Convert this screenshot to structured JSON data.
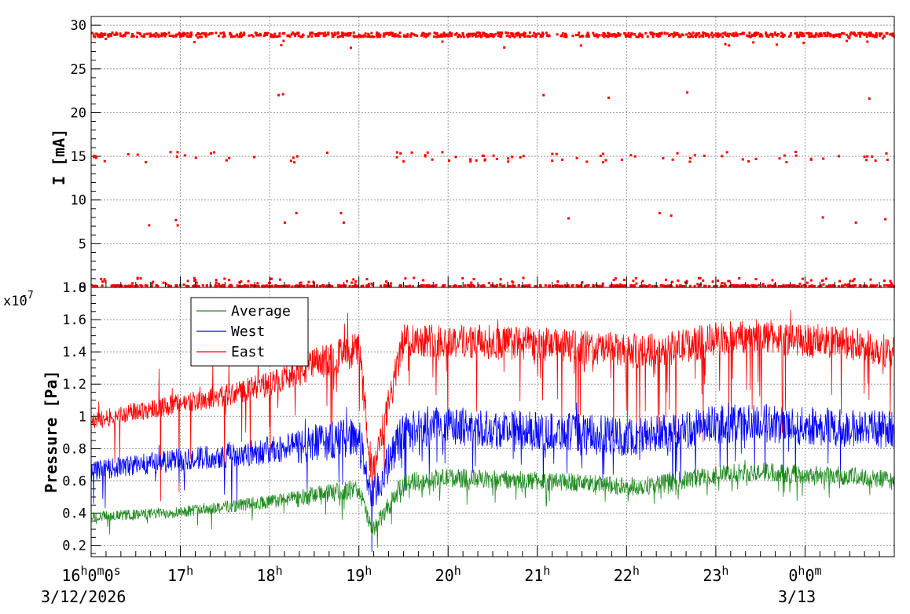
{
  "chart_data": [
    {
      "type": "scatter",
      "ylabel": "I [mA]",
      "ylim": [
        0,
        31
      ],
      "yticks": [
        "0",
        "5",
        "10",
        "15",
        "20",
        "25",
        "30"
      ],
      "grid": true,
      "color": "#ff0000",
      "series": [
        {
          "values_description_free": true,
          "bands": [
            {
              "level": 28.9,
              "note": ""
            },
            {
              "level": 14.9,
              "note": ""
            },
            {
              "level": 0.7,
              "note": ""
            },
            {
              "level": 0.1,
              "note": ""
            }
          ],
          "outliers": [
            {
              "x": 18.1,
              "y": 22.0
            },
            {
              "x": 18.15,
              "y": 22.1
            },
            {
              "x": 21.07,
              "y": 22.0
            },
            {
              "x": 21.8,
              "y": 21.7
            },
            {
              "x": 22.68,
              "y": 22.3
            },
            {
              "x": 24.72,
              "y": 21.6
            },
            {
              "x": 16.65,
              "y": 7.1
            },
            {
              "x": 16.95,
              "y": 7.7
            },
            {
              "x": 16.97,
              "y": 7.1
            },
            {
              "x": 18.17,
              "y": 7.4
            },
            {
              "x": 18.3,
              "y": 8.5
            },
            {
              "x": 18.8,
              "y": 8.5
            },
            {
              "x": 18.83,
              "y": 7.4
            },
            {
              "x": 21.35,
              "y": 7.9
            },
            {
              "x": 22.37,
              "y": 8.5
            },
            {
              "x": 22.5,
              "y": 8.2
            },
            {
              "x": 24.2,
              "y": 8.0
            },
            {
              "x": 24.57,
              "y": 7.4
            },
            {
              "x": 24.9,
              "y": 7.8
            }
          ]
        }
      ]
    },
    {
      "type": "line",
      "ylabel": "Pressure [Pa]",
      "yscale_label": "x10",
      "yscale_exp": "-7",
      "ylim": [
        0.13,
        1.8
      ],
      "yticks": [
        "0.2",
        "0.4",
        "0.6",
        "0.8",
        "1",
        "1.2",
        "1.4",
        "1.6",
        "1.8"
      ],
      "grid": true,
      "legend": "top-left",
      "series": [
        {
          "name": "Average",
          "color": "#228b22",
          "x": [
            16.0,
            16.5,
            17.0,
            17.5,
            18.0,
            18.5,
            19.0,
            19.15,
            19.5,
            20.0,
            20.5,
            21.0,
            21.5,
            22.0,
            22.5,
            23.0,
            23.5,
            24.0,
            24.5,
            25.0
          ],
          "values": [
            0.38,
            0.39,
            0.41,
            0.44,
            0.47,
            0.51,
            0.55,
            0.28,
            0.59,
            0.62,
            0.61,
            0.6,
            0.59,
            0.56,
            0.59,
            0.64,
            0.66,
            0.64,
            0.63,
            0.6
          ]
        },
        {
          "name": "West",
          "color": "#0000ff",
          "x": [
            16.0,
            16.5,
            17.0,
            17.5,
            18.0,
            18.5,
            19.0,
            19.15,
            19.5,
            20.0,
            20.5,
            21.0,
            21.5,
            22.0,
            22.5,
            23.0,
            23.5,
            24.0,
            24.5,
            25.0
          ],
          "values": [
            0.66,
            0.7,
            0.73,
            0.76,
            0.79,
            0.83,
            0.88,
            0.48,
            0.92,
            0.94,
            0.93,
            0.91,
            0.9,
            0.87,
            0.9,
            0.95,
            0.96,
            0.94,
            0.93,
            0.92
          ]
        },
        {
          "name": "East",
          "color": "#ff0000",
          "x": [
            16.0,
            16.5,
            17.0,
            17.5,
            18.0,
            18.5,
            19.0,
            19.15,
            19.5,
            20.0,
            20.5,
            21.0,
            21.5,
            22.0,
            22.5,
            23.0,
            23.5,
            24.0,
            24.5,
            25.0
          ],
          "values": [
            0.97,
            1.03,
            1.08,
            1.13,
            1.2,
            1.32,
            1.42,
            0.62,
            1.48,
            1.47,
            1.46,
            1.45,
            1.43,
            1.4,
            1.42,
            1.48,
            1.5,
            1.47,
            1.45,
            1.4
          ]
        }
      ]
    }
  ],
  "x_axis": {
    "ticks": [
      {
        "hour": 16,
        "label": "16",
        "sup": "h",
        "tail": "0",
        "tail_sup": "m",
        "tail2": "0",
        "tail2_sup": "s"
      },
      {
        "hour": 17,
        "label": "17",
        "sup": "h"
      },
      {
        "hour": 18,
        "label": "18",
        "sup": "h"
      },
      {
        "hour": 19,
        "label": "19",
        "sup": "h"
      },
      {
        "hour": 20,
        "label": "20",
        "sup": "h"
      },
      {
        "hour": 21,
        "label": "21",
        "sup": "h"
      },
      {
        "hour": 22,
        "label": "22",
        "sup": "h"
      },
      {
        "hour": 23,
        "label": "23",
        "sup": "h"
      },
      {
        "hour": 24,
        "label": "0",
        "sup": "h",
        "tail": "0",
        "tail_sup": "m"
      }
    ],
    "xlim": [
      16.0,
      25.0
    ],
    "date_start": "3/12/2026",
    "date_next": "3/13"
  }
}
